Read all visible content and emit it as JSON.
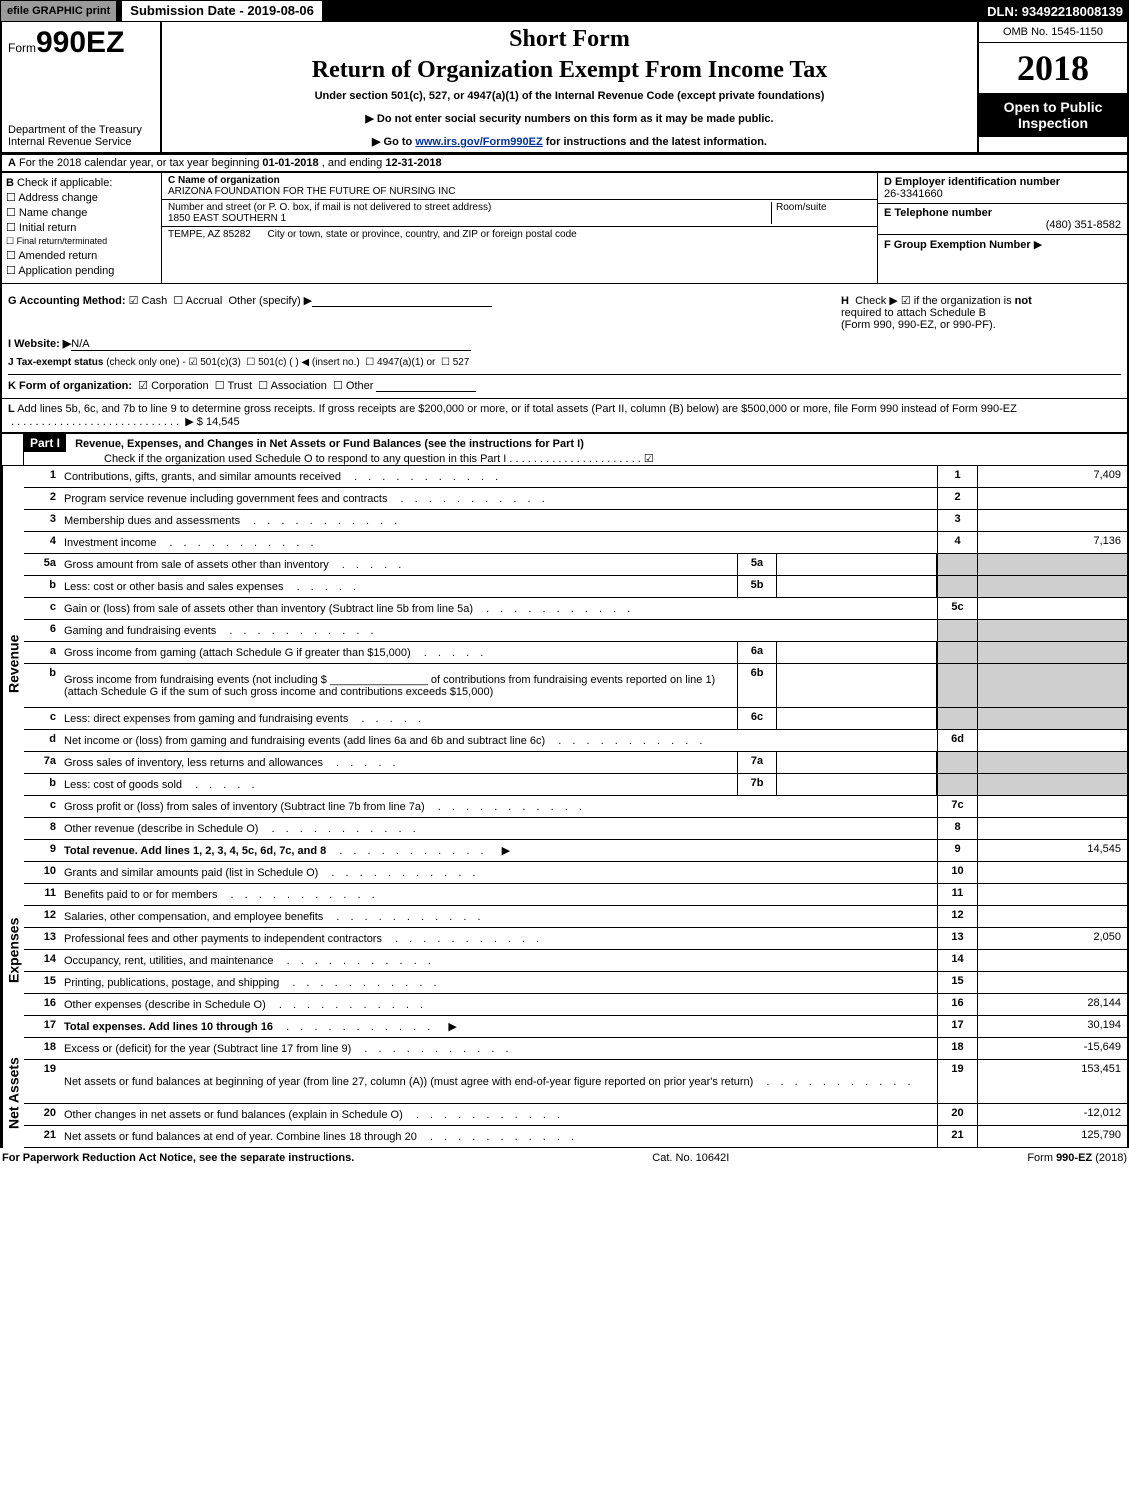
{
  "top": {
    "efile": "efile GRAPHIC print",
    "submission": "Submission Date - 2019-08-06",
    "dln": "DLN: 93492218008139"
  },
  "header": {
    "form_prefix": "Form",
    "form_code": "990EZ",
    "short_form": "Short Form",
    "title": "Return of Organization Exempt From Income Tax",
    "under_section": "Under section 501(c), 527, or 4947(a)(1) of the Internal Revenue Code (except private foundations)",
    "dept1": "Department of the Treasury",
    "dept2": "Internal Revenue Service",
    "arrow1": "▶ Do not enter social security numbers on this form as it may be made public.",
    "arrow2_pre": "▶ Go to ",
    "arrow2_link": "www.irs.gov/Form990EZ",
    "arrow2_post": " for instructions and the latest information.",
    "omb": "OMB No. 1545-1150",
    "year": "2018",
    "open1": "Open to Public",
    "open2": "Inspection"
  },
  "section_a": {
    "label": "A",
    "text_pre": "For the 2018 calendar year, or tax year beginning ",
    "begin": "01-01-2018",
    "mid": " , and ending ",
    "end": "12-31-2018"
  },
  "section_b": {
    "label": "B",
    "check_if": "Check if applicable:",
    "addr_change": "Address change",
    "name_change": "Name change",
    "initial": "Initial return",
    "final": "Final return/terminated",
    "amended": "Amended return",
    "pending": "Application pending",
    "c_label": "C Name of organization",
    "org_name": "ARIZONA FOUNDATION FOR THE FUTURE OF NURSING INC",
    "addr_label": "Number and street (or P. O. box, if mail is not delivered to street address)",
    "addr": "1850 EAST SOUTHERN 1",
    "room_label": "Room/suite",
    "city_label": "City or town, state or province, country, and ZIP or foreign postal code",
    "city": "TEMPE, AZ  85282",
    "d_label": "D Employer identification number",
    "ein": "26-3341660",
    "e_label": "E Telephone number",
    "phone": "(480) 351-8582",
    "f_label": "F Group Exemption Number",
    "f_arrow": "▶"
  },
  "ghij": {
    "g_label": "G Accounting Method:",
    "cash": "Cash",
    "accrual": "Accrual",
    "other": "Other (specify) ▶",
    "h_label": "H",
    "h_text1": "Check ▶",
    "h_text2": "if the organization is ",
    "h_not": "not",
    "h_text3": "required to attach Schedule B",
    "h_text4": "(Form 990, 990-EZ, or 990-PF).",
    "i_label": "I Website: ▶",
    "website": "N/A",
    "j_label": "J Tax-exempt status",
    "j_note": "(check only one) -",
    "j_501c3": "501(c)(3)",
    "j_501c": "501(c) (   ) ◀ (insert no.)",
    "j_4947": "4947(a)(1) or",
    "j_527": "527",
    "k_label": "K Form of organization:",
    "k_corp": "Corporation",
    "k_trust": "Trust",
    "k_assoc": "Association",
    "k_other": "Other"
  },
  "line_l": {
    "label": "L",
    "text": "Add lines 5b, 6c, and 7b to line 9 to determine gross receipts. If gross receipts are $200,000 or more, or if total assets (Part II, column (B) below) are $500,000 or more, file Form 990 instead of Form 990-EZ",
    "arrow": "▶",
    "amount": "$ 14,545"
  },
  "part1": {
    "label": "Part I",
    "title": "Revenue, Expenses, and Changes in Net Assets or Fund Balances (see the instructions for Part I)",
    "check_text": "Check if the organization used Schedule O to respond to any question in this Part I"
  },
  "side_labels": {
    "revenue": "Revenue",
    "expenses": "Expenses",
    "netassets": "Net Assets"
  },
  "lines": [
    {
      "n": "1",
      "desc": "Contributions, gifts, grants, and similar amounts received",
      "box": "1",
      "val": "7,409"
    },
    {
      "n": "2",
      "desc": "Program service revenue including government fees and contracts",
      "box": "2",
      "val": ""
    },
    {
      "n": "3",
      "desc": "Membership dues and assessments",
      "box": "3",
      "val": ""
    },
    {
      "n": "4",
      "desc": "Investment income",
      "box": "4",
      "val": "7,136"
    },
    {
      "n": "5a",
      "desc": "Gross amount from sale of assets other than inventory",
      "sub": "5a",
      "subval": "",
      "shade_box": true
    },
    {
      "n": "b",
      "desc": "Less: cost or other basis and sales expenses",
      "sub": "5b",
      "subval": "",
      "shade_box": true
    },
    {
      "n": "c",
      "desc": "Gain or (loss) from sale of assets other than inventory (Subtract line 5b from line 5a)",
      "box": "5c",
      "val": ""
    },
    {
      "n": "6",
      "desc": "Gaming and fundraising events",
      "shade_box": true,
      "shade_val": true
    },
    {
      "n": "a",
      "desc": "Gross income from gaming (attach Schedule G if greater than $15,000)",
      "sub": "6a",
      "subval": "",
      "shade_box": true
    },
    {
      "n": "b",
      "desc": "Gross income from fundraising events (not including $ ________________ of contributions from fundraising events reported on line 1) (attach Schedule G if the sum of such gross income and contributions exceeds $15,000)",
      "sub": "6b",
      "subval": "",
      "shade_box": true,
      "tall": true
    },
    {
      "n": "c",
      "desc": "Less: direct expenses from gaming and fundraising events",
      "sub": "6c",
      "subval": "",
      "shade_box": true
    },
    {
      "n": "d",
      "desc": "Net income or (loss) from gaming and fundraising events (add lines 6a and 6b and subtract line 6c)",
      "box": "6d",
      "val": ""
    },
    {
      "n": "7a",
      "desc": "Gross sales of inventory, less returns and allowances",
      "sub": "7a",
      "subval": "",
      "shade_box": true
    },
    {
      "n": "b",
      "desc": "Less: cost of goods sold",
      "sub": "7b",
      "subval": "",
      "shade_box": true
    },
    {
      "n": "c",
      "desc": "Gross profit or (loss) from sales of inventory (Subtract line 7b from line 7a)",
      "box": "7c",
      "val": ""
    },
    {
      "n": "8",
      "desc": "Other revenue (describe in Schedule O)",
      "box": "8",
      "val": ""
    },
    {
      "n": "9",
      "desc": "Total revenue. Add lines 1, 2, 3, 4, 5c, 6d, 7c, and 8",
      "box": "9",
      "val": "14,545",
      "bold": true,
      "arrow": true
    },
    {
      "n": "10",
      "desc": "Grants and similar amounts paid (list in Schedule O)",
      "box": "10",
      "val": ""
    },
    {
      "n": "11",
      "desc": "Benefits paid to or for members",
      "box": "11",
      "val": ""
    },
    {
      "n": "12",
      "desc": "Salaries, other compensation, and employee benefits",
      "box": "12",
      "val": ""
    },
    {
      "n": "13",
      "desc": "Professional fees and other payments to independent contractors",
      "box": "13",
      "val": "2,050"
    },
    {
      "n": "14",
      "desc": "Occupancy, rent, utilities, and maintenance",
      "box": "14",
      "val": ""
    },
    {
      "n": "15",
      "desc": "Printing, publications, postage, and shipping",
      "box": "15",
      "val": ""
    },
    {
      "n": "16",
      "desc": "Other expenses (describe in Schedule O)",
      "box": "16",
      "val": "28,144"
    },
    {
      "n": "17",
      "desc": "Total expenses. Add lines 10 through 16",
      "box": "17",
      "val": "30,194",
      "bold": true,
      "arrow": true
    },
    {
      "n": "18",
      "desc": "Excess or (deficit) for the year (Subtract line 17 from line 9)",
      "box": "18",
      "val": "-15,649"
    },
    {
      "n": "19",
      "desc": "Net assets or fund balances at beginning of year (from line 27, column (A)) (must agree with end-of-year figure reported on prior year's return)",
      "box": "19",
      "val": "153,451",
      "tall": true
    },
    {
      "n": "20",
      "desc": "Other changes in net assets or fund balances (explain in Schedule O)",
      "box": "20",
      "val": "-12,012"
    },
    {
      "n": "21",
      "desc": "Net assets or fund balances at end of year. Combine lines 18 through 20",
      "box": "21",
      "val": "125,790"
    }
  ],
  "footer": {
    "left": "For Paperwork Reduction Act Notice, see the separate instructions.",
    "mid": "Cat. No. 10642I",
    "right": "Form 990-EZ (2018)"
  }
}
